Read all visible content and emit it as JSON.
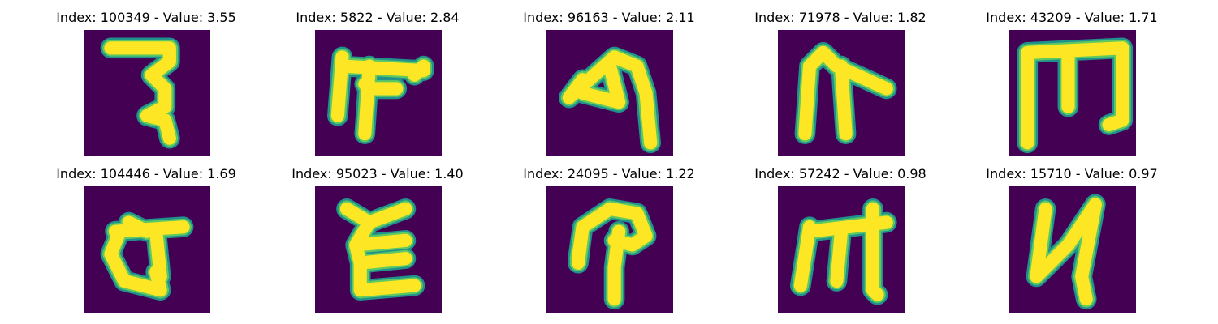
{
  "colors": {
    "background": "#440154",
    "stroke_core": "#fde725",
    "stroke_mid": "#5ec962",
    "stroke_edge": "#21918c"
  },
  "items": [
    {
      "title": "Index: 100349 - Value: 3.55",
      "glyph": "glyph-1"
    },
    {
      "title": "Index: 5822 - Value: 2.84",
      "glyph": "glyph-2"
    },
    {
      "title": "Index: 96163 - Value: 2.11",
      "glyph": "glyph-3"
    },
    {
      "title": "Index: 71978 - Value: 1.82",
      "glyph": "glyph-4"
    },
    {
      "title": "Index: 43209 - Value: 1.71",
      "glyph": "glyph-5"
    },
    {
      "title": "Index: 104446 - Value: 1.69",
      "glyph": "glyph-6"
    },
    {
      "title": "Index: 95023 - Value: 1.40",
      "glyph": "glyph-7"
    },
    {
      "title": "Index: 24095 - Value: 1.22",
      "glyph": "glyph-8"
    },
    {
      "title": "Index: 57242 - Value: 0.98",
      "glyph": "glyph-9"
    },
    {
      "title": "Index: 15710 - Value: 0.97",
      "glyph": "glyph-10"
    }
  ]
}
